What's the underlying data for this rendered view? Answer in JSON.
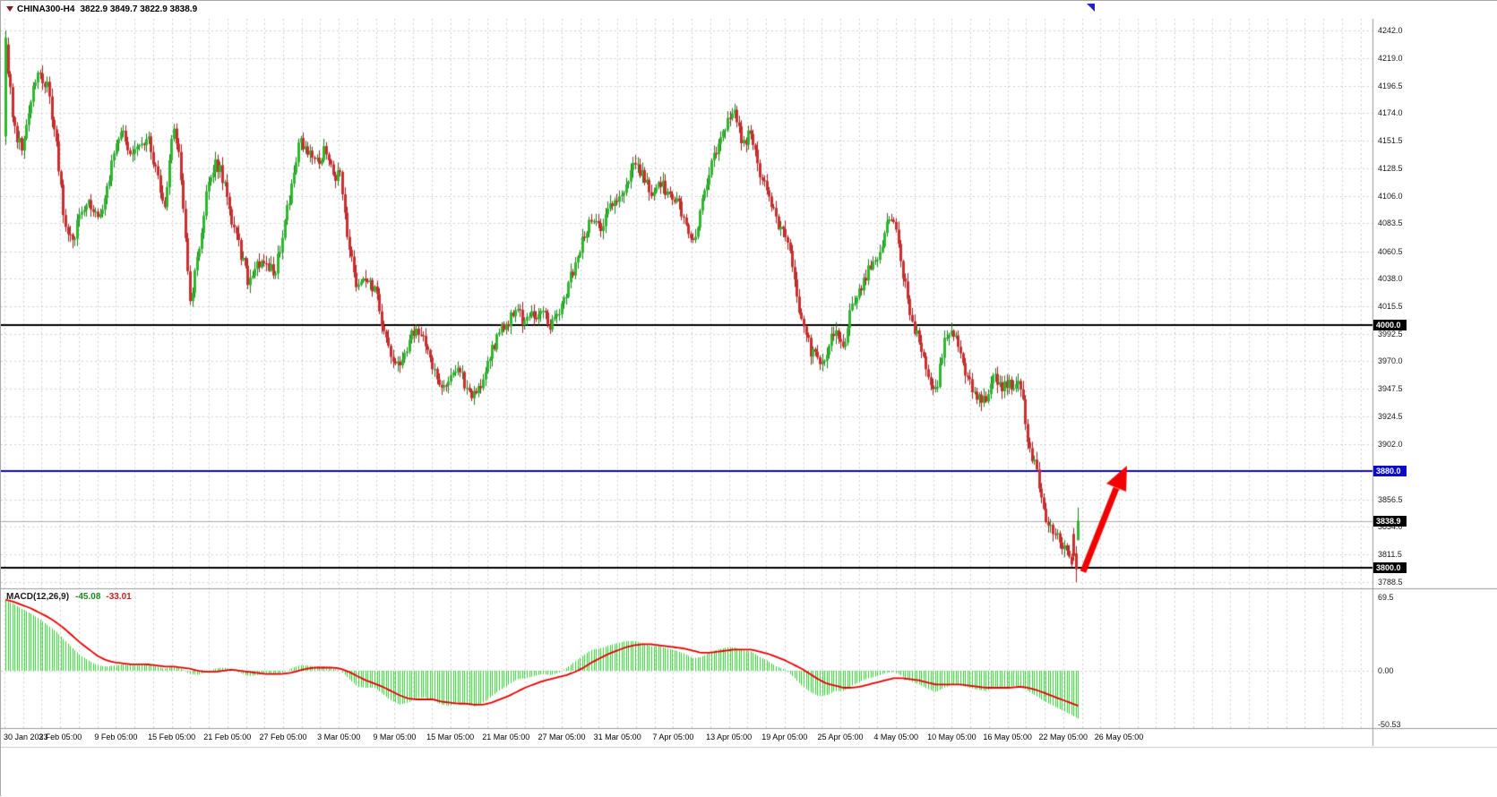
{
  "symbol": {
    "name": "CHINA300-H4",
    "ohlc_text": "3822.9 3849.7 3822.9 3838.9",
    "open": 3822.9,
    "high": 3849.7,
    "low": 3822.9,
    "close": 3838.9
  },
  "chart_data": {
    "type": "candlestick",
    "title": "CHINA300-H4",
    "timeframe": "H4",
    "current_ohlc": {
      "open": 3822.9,
      "high": 3849.7,
      "low": 3822.9,
      "close": 3838.9
    },
    "candle_count": 466,
    "ylim": [
      3784,
      4252
    ],
    "y_ticks": [
      "4242.0",
      "4219.0",
      "4196.5",
      "4174.0",
      "4151.5",
      "4128.5",
      "4106.0",
      "4083.5",
      "4060.5",
      "4038.0",
      "4015.5",
      "3992.5",
      "3970.0",
      "3947.5",
      "3924.5",
      "3902.0",
      "3856.5",
      "3834.0",
      "3811.5",
      "3788.5"
    ],
    "y_grid_extra": [
      3879.5
    ],
    "x_labels": [
      "30 Jan 2023",
      "3 Feb 05:00",
      "9 Feb 05:00",
      "15 Feb 05:00",
      "21 Feb 05:00",
      "27 Feb 05:00",
      "3 Mar 05:00",
      "9 Mar 05:00",
      "15 Mar 05:00",
      "21 Mar 05:00",
      "27 Mar 05:00",
      "31 Mar 05:00",
      "7 Apr 05:00",
      "13 Apr 05:00",
      "19 Apr 05:00",
      "25 Apr 05:00",
      "4 May 05:00",
      "10 May 05:00",
      "16 May 05:00",
      "22 May 05:00",
      "26 May 05:00"
    ],
    "sampled_closes": [
      4230,
      4160,
      4145,
      4185,
      4205,
      4195,
      4150,
      4085,
      4065,
      4095,
      4100,
      4085,
      4110,
      4140,
      4160,
      4135,
      4150,
      4155,
      4125,
      4095,
      4170,
      4120,
      4015,
      4060,
      4110,
      4135,
      4120,
      4085,
      4060,
      4035,
      4050,
      4055,
      4040,
      4070,
      4110,
      4150,
      4145,
      4130,
      4145,
      4125,
      4120,
      4060,
      4028,
      4035,
      4030,
      4000,
      3975,
      3962,
      3985,
      4000,
      3988,
      3965,
      3945,
      3952,
      3968,
      3945,
      3940,
      3958,
      3978,
      3995,
      4002,
      4015,
      4000,
      4008,
      4012,
      3998,
      4005,
      4030,
      4052,
      4075,
      4088,
      4082,
      4095,
      4100,
      4118,
      4130,
      4125,
      4110,
      4118,
      4108,
      4102,
      4088,
      4070,
      4095,
      4125,
      4150,
      4165,
      4172,
      4150,
      4158,
      4125,
      4110,
      4085,
      4078,
      4040,
      4002,
      3980,
      3968,
      3978,
      3995,
      3982,
      4015,
      4028,
      4045,
      4055,
      4078,
      4088,
      4045,
      4005,
      3988,
      3960,
      3945,
      3985,
      3998,
      3975,
      3952,
      3940,
      3935,
      3958,
      3948,
      3950,
      3955,
      3905,
      3878,
      3845,
      3832,
      3820,
      3805,
      3800
    ],
    "first_candle_override": {
      "open": 4155,
      "high": 4242,
      "low": 4148,
      "close": 4236
    },
    "last_candles_override": [
      {
        "open": 3828,
        "high": 3833,
        "low": 3806,
        "close": 3810
      },
      {
        "open": 3812,
        "high": 3818,
        "low": 3788.5,
        "close": 3799
      },
      {
        "open": 3822.9,
        "high": 3849.7,
        "low": 3822.9,
        "close": 3838.9
      }
    ],
    "horizontal_lines": [
      {
        "price": 3838.9,
        "color": "#ababab",
        "width": 1,
        "role": "current-price-line"
      },
      {
        "price": 4000.0,
        "color": "#000000",
        "width": 2,
        "role": "support-resistance"
      },
      {
        "price": 3880.0,
        "color": "#0a0acd",
        "width": 2,
        "role": "target-level"
      },
      {
        "price": 3800.0,
        "color": "#000000",
        "width": 2,
        "role": "support-level"
      }
    ],
    "price_badges": [
      {
        "text": "4000.0",
        "price": 4000.0,
        "bg": "#000000"
      },
      {
        "text": "3880.0",
        "price": 3880.0,
        "bg": "#0a0acd"
      },
      {
        "text": "3838.9",
        "price": 3838.9,
        "bg": "#000000"
      },
      {
        "text": "3800.0",
        "price": 3800.0,
        "bg": "#000000"
      }
    ],
    "arrow": {
      "kind": "buy-signal-up-arrow",
      "color": "#f20000",
      "start_price": 3797,
      "tip_price": 3885
    },
    "candle_colors": {
      "bull": "#2eb82e",
      "bear": "#cc2e2e",
      "bull_wick": "#1e7a1e",
      "bear_wick": "#992222"
    },
    "macd": {
      "label": "MACD(12,26,9)",
      "main_text": "-45.08",
      "signal_text": "-33.01",
      "axis_ticks": [
        "69.5",
        "0.00",
        "-50.53"
      ],
      "ylim": [
        -54,
        76
      ],
      "histogram_color": "#32cd32",
      "signal_color": "#e60000",
      "sampled_histogram": [
        66,
        63,
        58,
        54,
        49,
        43,
        37,
        29,
        21,
        14,
        9,
        5,
        4,
        5,
        6,
        5,
        5,
        6,
        4,
        2,
        4,
        2,
        -3,
        -4,
        -1,
        2,
        3,
        1,
        -2,
        -5,
        -4,
        -3,
        -4,
        -2,
        2,
        5,
        5,
        4,
        4,
        2,
        0,
        -8,
        -15,
        -16,
        -16,
        -22,
        -28,
        -32,
        -30,
        -26,
        -25,
        -28,
        -32,
        -33,
        -30,
        -32,
        -34,
        -30,
        -24,
        -18,
        -13,
        -8,
        -7,
        -5,
        -3,
        -4,
        -2,
        3,
        9,
        15,
        20,
        21,
        24,
        26,
        28,
        28,
        26,
        23,
        23,
        21,
        19,
        16,
        12,
        13,
        17,
        20,
        22,
        22,
        19,
        18,
        13,
        9,
        4,
        1,
        -6,
        -14,
        -20,
        -24,
        -23,
        -19,
        -19,
        -14,
        -10,
        -7,
        -5,
        -2,
        -1,
        -5,
        -10,
        -13,
        -17,
        -20,
        -16,
        -13,
        -14,
        -16,
        -18,
        -19,
        -16,
        -16,
        -15,
        -14,
        -19,
        -24,
        -29,
        -33,
        -37,
        -41,
        -45.08
      ],
      "sampled_signal": [
        67,
        65,
        62,
        59,
        55,
        51,
        46,
        40,
        33,
        26,
        20,
        14,
        10,
        8,
        7,
        6,
        6,
        6,
        5,
        4,
        4,
        3,
        2,
        0,
        -1,
        -1,
        0,
        1,
        0,
        -1,
        -2,
        -3,
        -3,
        -3,
        -2,
        0,
        2,
        3,
        3,
        3,
        2,
        -1,
        -5,
        -9,
        -12,
        -15,
        -19,
        -23,
        -26,
        -27,
        -27,
        -27,
        -29,
        -30,
        -31,
        -31,
        -32,
        -32,
        -30,
        -27,
        -24,
        -20,
        -16,
        -13,
        -10,
        -8,
        -6,
        -4,
        -1,
        3,
        8,
        12,
        16,
        19,
        22,
        24,
        25,
        25,
        24,
        23,
        22,
        21,
        19,
        17,
        17,
        18,
        19,
        20,
        20,
        20,
        18,
        16,
        13,
        10,
        6,
        2,
        -3,
        -8,
        -12,
        -14,
        -16,
        -16,
        -15,
        -13,
        -11,
        -9,
        -7,
        -7,
        -8,
        -9,
        -11,
        -13,
        -13,
        -13,
        -13,
        -14,
        -15,
        -16,
        -16,
        -16,
        -16,
        -15,
        -16,
        -18,
        -21,
        -24,
        -27,
        -30,
        -33.01
      ]
    }
  }
}
